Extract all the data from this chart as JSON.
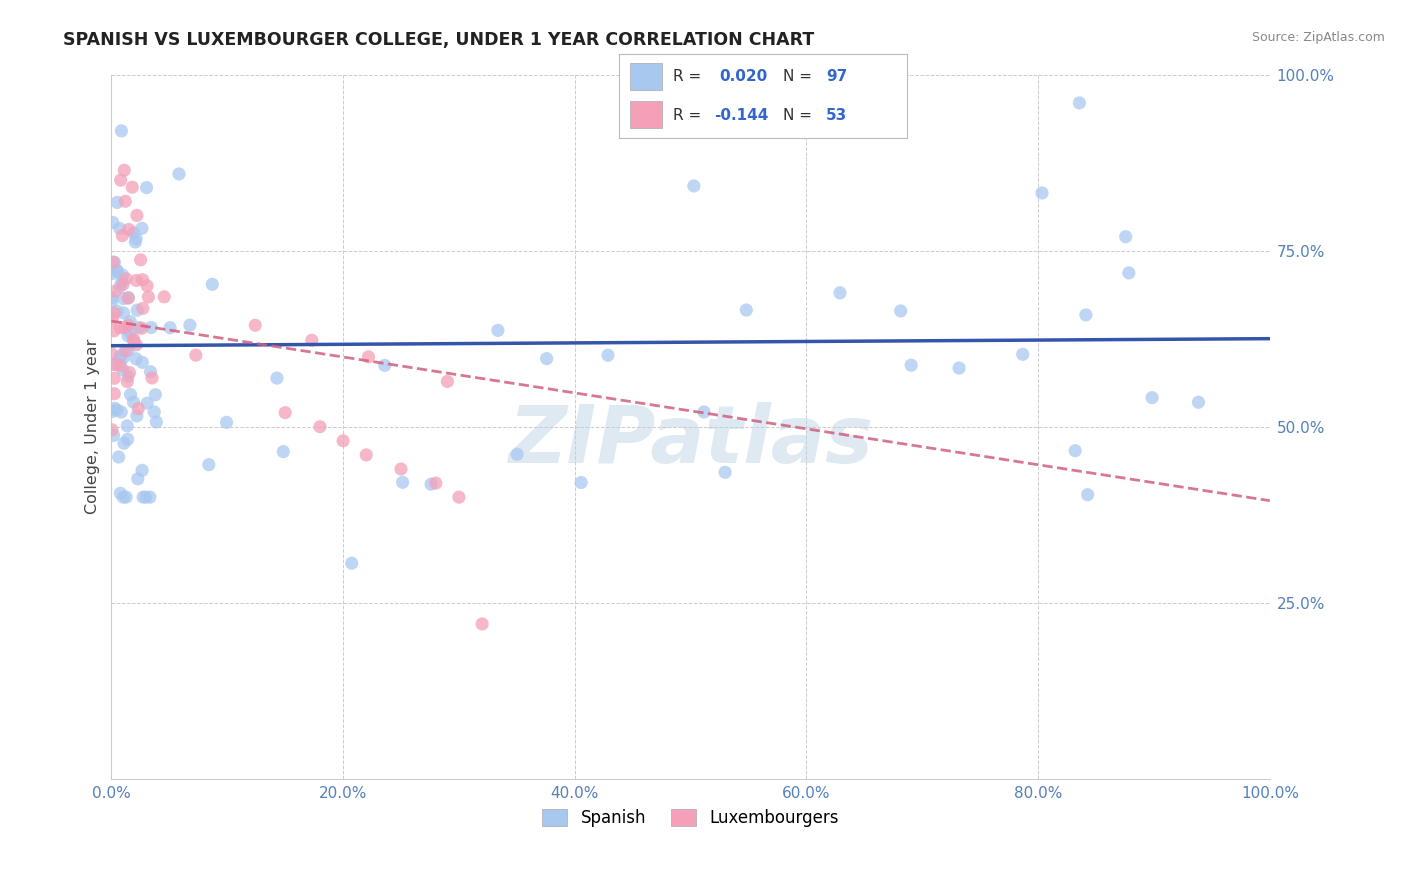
{
  "title": "SPANISH VS LUXEMBOURGER COLLEGE, UNDER 1 YEAR CORRELATION CHART",
  "source_text": "Source: ZipAtlas.com",
  "ylabel": "College, Under 1 year",
  "xmin": 0.0,
  "xmax": 1.0,
  "ymin": 0.0,
  "ymax": 1.0,
  "xtick_values": [
    0.0,
    0.2,
    0.4,
    0.6,
    0.8,
    1.0
  ],
  "xtick_labels": [
    "0.0%",
    "20.0%",
    "40.0%",
    "60.0%",
    "80.0%",
    "100.0%"
  ],
  "ytick_values": [
    0.25,
    0.5,
    0.75,
    1.0
  ],
  "ytick_labels": [
    "25.0%",
    "50.0%",
    "75.0%",
    "100.0%"
  ],
  "spanish_R": 0.02,
  "spanish_N": 97,
  "luxembourger_R": -0.144,
  "luxembourger_N": 53,
  "spanish_color": "#a8c8f0",
  "luxembourger_color": "#f4a0b8",
  "spanish_line_color": "#3355aa",
  "luxembourger_line_color": "#d06080",
  "watermark": "ZIPatlas",
  "background_color": "#ffffff",
  "plot_bg_color": "#ffffff",
  "grid_color": "#cccccc",
  "legend_labels": [
    "Spanish",
    "Luxembourgers"
  ],
  "sp_line_y0": 0.615,
  "sp_line_y1": 0.625,
  "lu_line_y0": 0.65,
  "lu_line_y1": 0.395,
  "lu_line_x1": 1.0
}
